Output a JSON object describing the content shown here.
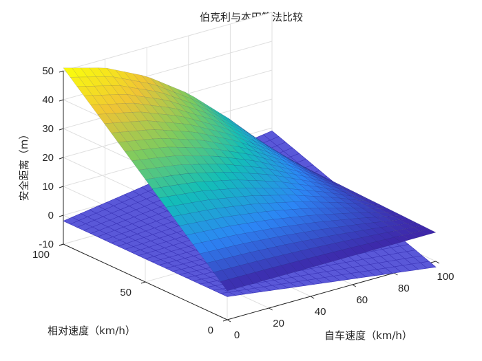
{
  "chart_data": {
    "type": "surface3d",
    "title": "伯克利与本田算法比较",
    "xlabel": "自车速度（km/h）",
    "ylabel": "相对速度（km/h）",
    "zlabel": "安全距离（m）",
    "xlim": [
      0,
      100
    ],
    "ylim": [
      0,
      100
    ],
    "zlim": [
      -10,
      50
    ],
    "xticks": [
      "0",
      "20",
      "40",
      "60",
      "80",
      "100"
    ],
    "yticks": [
      "0",
      "50",
      "100"
    ],
    "zticks": [
      "-10",
      "0",
      "10",
      "20",
      "30",
      "40",
      "50"
    ],
    "grid": true,
    "colormap": "parula",
    "colors": {
      "plane_fill": "#5a58d8",
      "plane_edge": "#3b35b8",
      "surface_low": "#3e26a8",
      "surface_high": "#f9fb0e"
    },
    "series": [
      {
        "name": "",
        "kind": "plane",
        "corner_z_values": {
          "x0_y0": -2,
          "x100_y0": -12,
          "x0_y100": -2,
          "x100_y100": 9
        }
      },
      {
        "name": "",
        "kind": "curved_surface",
        "z_profile_along_x_at_y100": [
          {
            "x": 0,
            "z": 51
          },
          {
            "x": 20,
            "z": 47
          },
          {
            "x": 40,
            "z": 40
          },
          {
            "x": 60,
            "z": 30
          },
          {
            "x": 80,
            "z": 17
          },
          {
            "x": 100,
            "z": 2
          }
        ],
        "z_at_y0": 0
      }
    ]
  }
}
